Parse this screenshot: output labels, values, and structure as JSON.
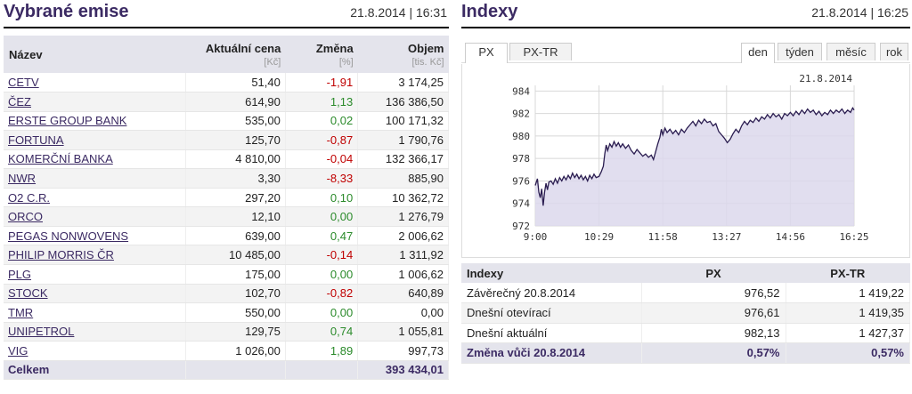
{
  "left": {
    "title": "Vybrané emise",
    "timestamp": "21.8.2014 | 16:31",
    "columns": {
      "name": "Název",
      "price": "Aktuální cena",
      "price_unit": "[Kč]",
      "change": "Změna",
      "change_unit": "[%]",
      "volume": "Objem",
      "volume_unit": "[tis. Kč]"
    },
    "rows": [
      {
        "name": "CETV",
        "price": "51,40",
        "change": "-1,91",
        "volume": "3 174,25"
      },
      {
        "name": "ČEZ",
        "price": "614,90",
        "change": "1,13",
        "volume": "136 386,50"
      },
      {
        "name": "ERSTE GROUP BANK",
        "price": "535,00",
        "change": "0,02",
        "volume": "100 171,32"
      },
      {
        "name": "FORTUNA",
        "price": "125,70",
        "change": "-0,87",
        "volume": "1 790,76"
      },
      {
        "name": "KOMERČNÍ BANKA",
        "price": "4 810,00",
        "change": "-0,04",
        "volume": "132 366,17"
      },
      {
        "name": "NWR",
        "price": "3,30",
        "change": "-8,33",
        "volume": "885,90"
      },
      {
        "name": "O2 C.R.",
        "price": "297,20",
        "change": "0,10",
        "volume": "10 362,72"
      },
      {
        "name": "ORCO",
        "price": "12,10",
        "change": "0,00",
        "volume": "1 276,79"
      },
      {
        "name": "PEGAS NONWOVENS",
        "price": "639,00",
        "change": "0,47",
        "volume": "2 006,62"
      },
      {
        "name": "PHILIP MORRIS ČR",
        "price": "10 485,00",
        "change": "-0,14",
        "volume": "1 311,92"
      },
      {
        "name": "PLG",
        "price": "175,00",
        "change": "0,00",
        "volume": "1 006,62"
      },
      {
        "name": "STOCK",
        "price": "102,70",
        "change": "-0,82",
        "volume": "640,89"
      },
      {
        "name": "TMR",
        "price": "550,00",
        "change": "0,00",
        "volume": "0,00"
      },
      {
        "name": "UNIPETROL",
        "price": "129,75",
        "change": "0,74",
        "volume": "1 055,81"
      },
      {
        "name": "VIG",
        "price": "1 026,00",
        "change": "1,89",
        "volume": "997,73"
      }
    ],
    "total_label": "Celkem",
    "total_volume": "393 434,01"
  },
  "right": {
    "title": "Indexy",
    "timestamp": "21.8.2014 | 16:25",
    "index_tabs": [
      "PX",
      "PX-TR"
    ],
    "period_tabs": [
      "den",
      "týden",
      "měsíc",
      "rok"
    ],
    "table_headers": [
      "Indexy",
      "PX",
      "PX-TR"
    ],
    "table_rows": [
      {
        "label": "Závěrečný 20.8.2014",
        "px": "976,52",
        "pxtr": "1 419,22"
      },
      {
        "label": "Dnešní otevírací",
        "px": "976,61",
        "pxtr": "1 419,35"
      },
      {
        "label": "Dnešní aktuální",
        "px": "982,13",
        "pxtr": "1 427,37"
      }
    ],
    "change_row": {
      "label": "Změna vůči 20.8.2014",
      "px": "0,57%",
      "pxtr": "0,57%"
    }
  },
  "colors": {
    "accent": "#3b2a63",
    "negative": "#c00000",
    "positive": "#2a8a2a",
    "chart_line": "#2a1c50",
    "chart_fill": "#dcd8ec"
  },
  "chart_data": {
    "type": "area",
    "date_label": "21.8.2014",
    "x_tick_labels": [
      "9:00",
      "10:29",
      "11:58",
      "13:27",
      "14:56",
      "16:25"
    ],
    "y_tick_labels": [
      "972",
      "974",
      "976",
      "978",
      "980",
      "982",
      "984"
    ],
    "ylim": [
      972,
      984.5
    ],
    "x_minutes_range": [
      0,
      445
    ],
    "series": [
      {
        "points": [
          [
            0,
            975.6
          ],
          [
            3,
            976.2
          ],
          [
            5,
            975.0
          ],
          [
            7,
            974.5
          ],
          [
            9,
            975.3
          ],
          [
            11,
            973.8
          ],
          [
            13,
            975.0
          ],
          [
            15,
            975.8
          ],
          [
            17,
            975.2
          ],
          [
            19,
            975.9
          ],
          [
            22,
            976.0
          ],
          [
            25,
            975.7
          ],
          [
            28,
            976.2
          ],
          [
            31,
            975.8
          ],
          [
            34,
            976.3
          ],
          [
            37,
            976.0
          ],
          [
            40,
            976.4
          ],
          [
            43,
            976.1
          ],
          [
            46,
            976.5
          ],
          [
            49,
            976.2
          ],
          [
            52,
            976.7
          ],
          [
            55,
            976.3
          ],
          [
            58,
            976.6
          ],
          [
            61,
            976.2
          ],
          [
            64,
            976.5
          ],
          [
            67,
            976.1
          ],
          [
            70,
            976.4
          ],
          [
            73,
            976.0
          ],
          [
            76,
            976.5
          ],
          [
            79,
            976.2
          ],
          [
            82,
            976.6
          ],
          [
            85,
            976.3
          ],
          [
            89,
            976.4
          ],
          [
            92,
            976.8
          ],
          [
            95,
            977.3
          ],
          [
            97,
            978.4
          ],
          [
            99,
            979.2
          ],
          [
            101,
            978.7
          ],
          [
            104,
            979.3
          ],
          [
            107,
            979.0
          ],
          [
            110,
            979.5
          ],
          [
            113,
            979.1
          ],
          [
            116,
            979.4
          ],
          [
            119,
            979.0
          ],
          [
            122,
            979.3
          ],
          [
            126,
            978.9
          ],
          [
            130,
            979.2
          ],
          [
            134,
            978.7
          ],
          [
            138,
            978.4
          ],
          [
            142,
            978.8
          ],
          [
            146,
            978.5
          ],
          [
            150,
            978.2
          ],
          [
            154,
            978.4
          ],
          [
            158,
            978.1
          ],
          [
            162,
            978.3
          ],
          [
            165,
            977.9
          ],
          [
            168,
            978.6
          ],
          [
            171,
            979.3
          ],
          [
            174,
            979.9
          ],
          [
            176,
            980.6
          ],
          [
            178,
            980.1
          ],
          [
            181,
            980.7
          ],
          [
            184,
            980.3
          ],
          [
            188,
            980.6
          ],
          [
            192,
            980.2
          ],
          [
            196,
            980.5
          ],
          [
            200,
            980.1
          ],
          [
            204,
            980.6
          ],
          [
            208,
            980.3
          ],
          [
            212,
            980.7
          ],
          [
            216,
            981.0
          ],
          [
            220,
            981.3
          ],
          [
            224,
            980.9
          ],
          [
            228,
            981.4
          ],
          [
            232,
            981.1
          ],
          [
            236,
            981.5
          ],
          [
            240,
            981.2
          ],
          [
            244,
            981.3
          ],
          [
            248,
            980.9
          ],
          [
            252,
            981.1
          ],
          [
            256,
            980.4
          ],
          [
            260,
            980.1
          ],
          [
            264,
            979.8
          ],
          [
            268,
            979.4
          ],
          [
            272,
            979.7
          ],
          [
            276,
            980.2
          ],
          [
            280,
            980.6
          ],
          [
            284,
            980.3
          ],
          [
            288,
            980.9
          ],
          [
            292,
            981.3
          ],
          [
            296,
            981.0
          ],
          [
            300,
            981.4
          ],
          [
            304,
            981.2
          ],
          [
            308,
            981.6
          ],
          [
            312,
            981.3
          ],
          [
            316,
            981.7
          ],
          [
            320,
            981.5
          ],
          [
            324,
            981.9
          ],
          [
            328,
            981.6
          ],
          [
            332,
            982.0
          ],
          [
            336,
            981.7
          ],
          [
            340,
            981.9
          ],
          [
            344,
            981.5
          ],
          [
            348,
            982.0
          ],
          [
            352,
            981.8
          ],
          [
            356,
            982.1
          ],
          [
            360,
            981.8
          ],
          [
            364,
            982.2
          ],
          [
            368,
            981.9
          ],
          [
            372,
            982.3
          ],
          [
            376,
            982.0
          ],
          [
            380,
            982.4
          ],
          [
            384,
            982.1
          ],
          [
            388,
            982.3
          ],
          [
            392,
            981.9
          ],
          [
            396,
            982.2
          ],
          [
            400,
            981.8
          ],
          [
            404,
            982.1
          ],
          [
            408,
            981.9
          ],
          [
            412,
            982.3
          ],
          [
            416,
            982.0
          ],
          [
            420,
            982.3
          ],
          [
            424,
            982.1
          ],
          [
            428,
            982.4
          ],
          [
            432,
            982.0
          ],
          [
            436,
            982.3
          ],
          [
            440,
            982.1
          ],
          [
            443,
            982.5
          ],
          [
            445,
            982.3
          ]
        ]
      }
    ]
  }
}
